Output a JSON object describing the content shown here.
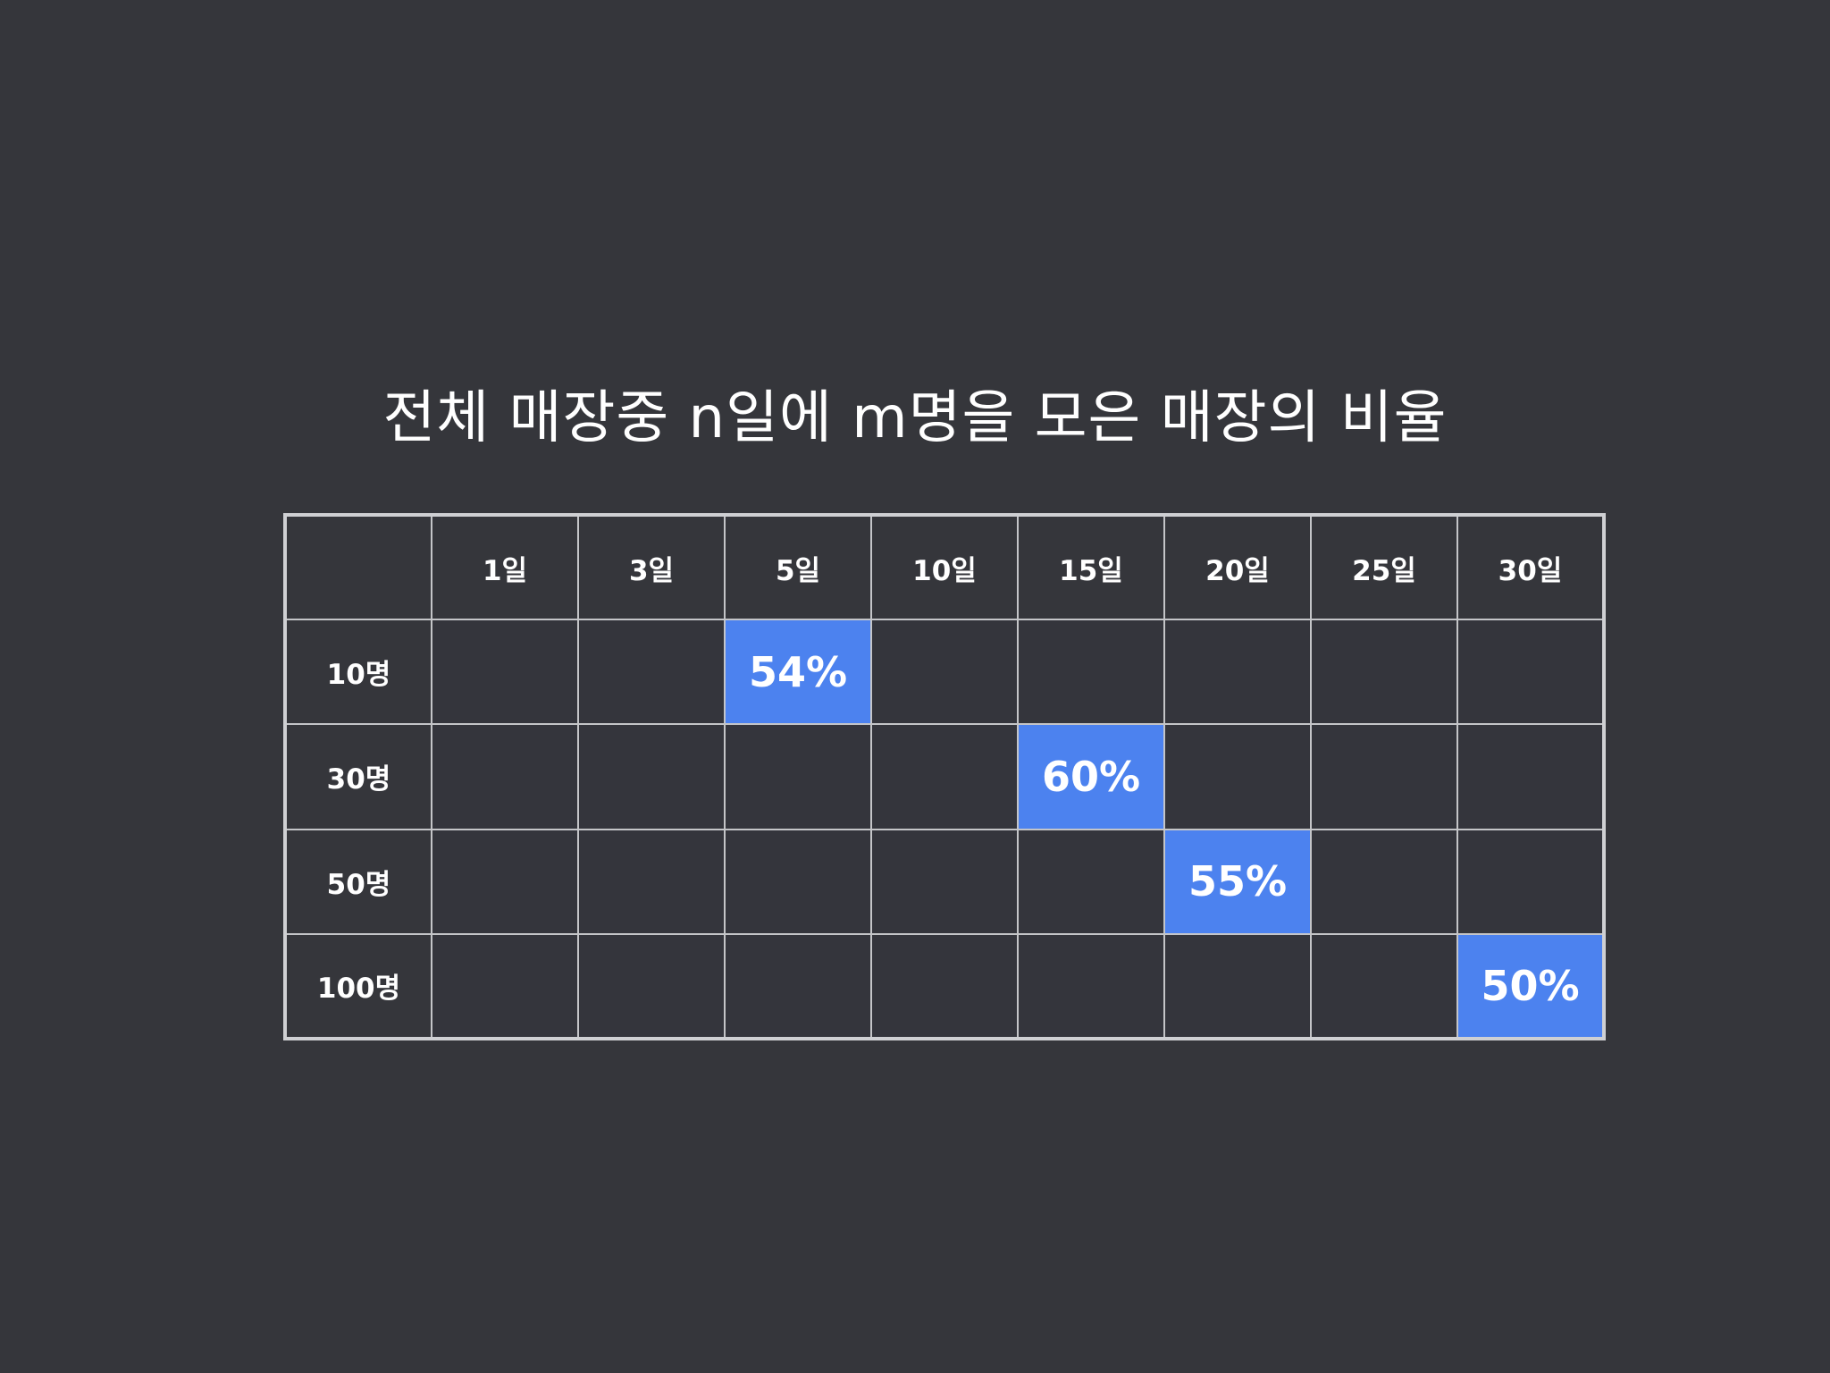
{
  "title": "전체 매장중 n일에 m명을 모은 매장의 비율",
  "colors": {
    "background": "#35363b",
    "highlight": "#4c82ef",
    "grid": "#c4c5c8",
    "text": "#ffffff"
  },
  "chart_data": {
    "type": "table",
    "title": "전체 매장중 n일에 m명을 모은 매장의 비율",
    "columns": [
      "1일",
      "3일",
      "5일",
      "10일",
      "15일",
      "20일",
      "25일",
      "30일"
    ],
    "rows": [
      "10명",
      "30명",
      "50명",
      "100명"
    ],
    "cells": [
      [
        "",
        "",
        "54%",
        "",
        "",
        "",
        "",
        ""
      ],
      [
        "",
        "",
        "",
        "",
        "60%",
        "",
        "",
        ""
      ],
      [
        "",
        "",
        "",
        "",
        "",
        "55%",
        "",
        ""
      ],
      [
        "",
        "",
        "",
        "",
        "",
        "",
        "",
        "50%"
      ]
    ],
    "highlighted_values": [
      {
        "row": "10명",
        "column": "5일",
        "value": 54
      },
      {
        "row": "30명",
        "column": "15일",
        "value": 60
      },
      {
        "row": "50명",
        "column": "20일",
        "value": 55
      },
      {
        "row": "100명",
        "column": "30일",
        "value": 50
      }
    ]
  }
}
